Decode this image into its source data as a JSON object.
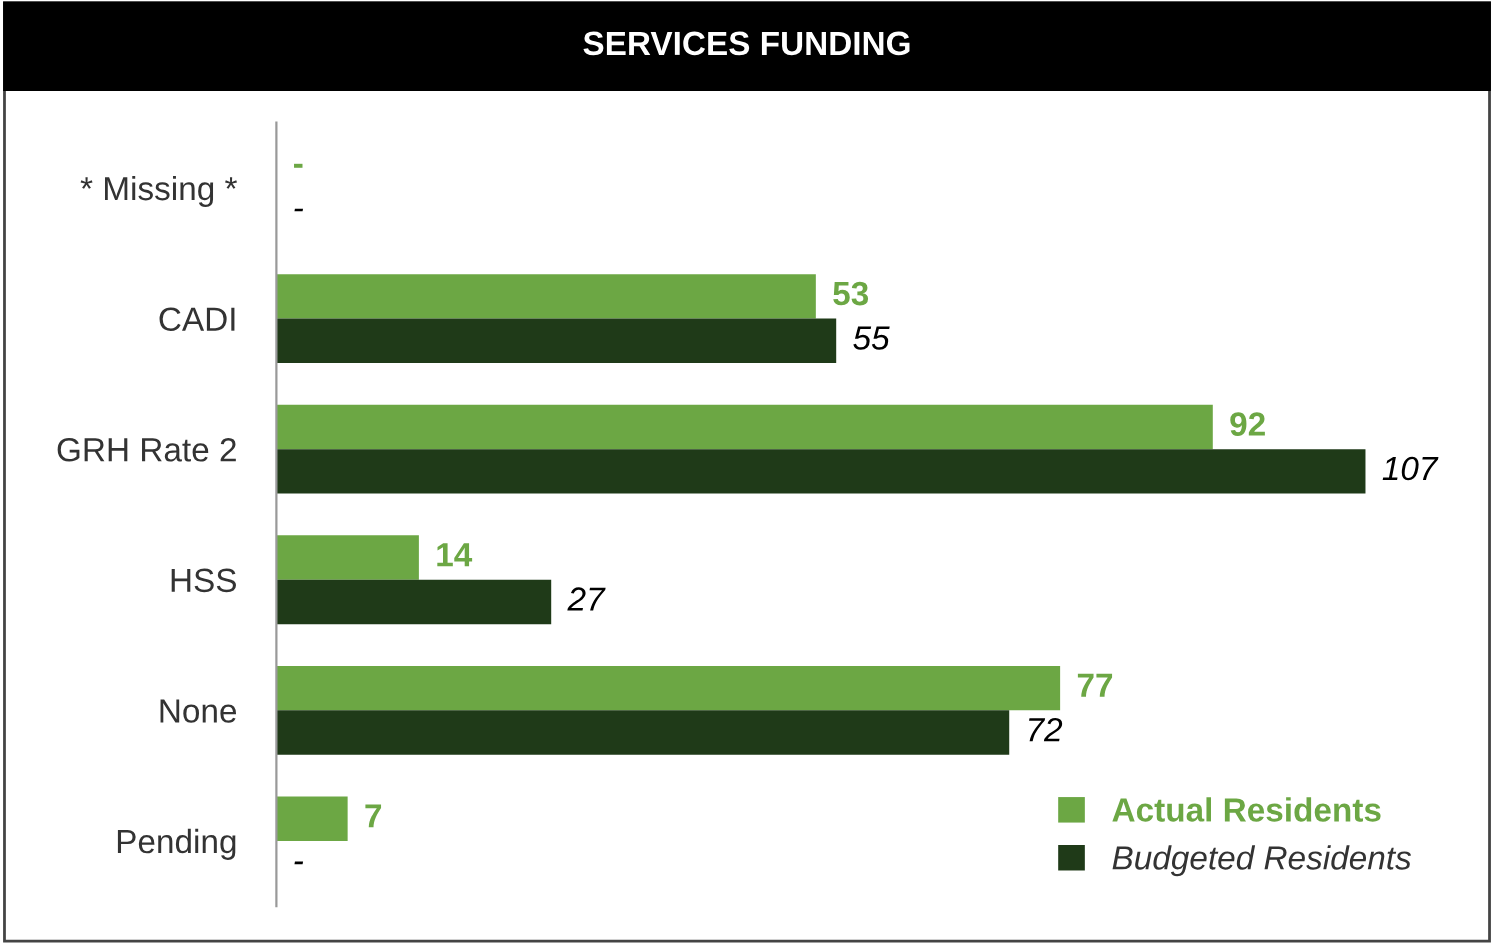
{
  "chart_data": {
    "type": "bar",
    "orientation": "horizontal",
    "title": "SERVICES FUNDING",
    "categories": [
      "* Missing *",
      "CADI",
      "GRH Rate 2",
      "HSS",
      "None",
      "Pending"
    ],
    "series": [
      {
        "name": "Actual Residents",
        "color": "#6ca744",
        "values": [
          null,
          53,
          92,
          14,
          77,
          7
        ],
        "value_labels": [
          "-",
          "53",
          "92",
          "14",
          "77",
          "7"
        ]
      },
      {
        "name": "Budgeted Residents",
        "color": "#1f3a18",
        "values": [
          null,
          55,
          107,
          27,
          72,
          null
        ],
        "value_labels": [
          "-",
          "55",
          "107",
          "27",
          "72",
          "-"
        ]
      }
    ],
    "legend": "bottom right",
    "grid": false,
    "tick_labels": "y"
  }
}
